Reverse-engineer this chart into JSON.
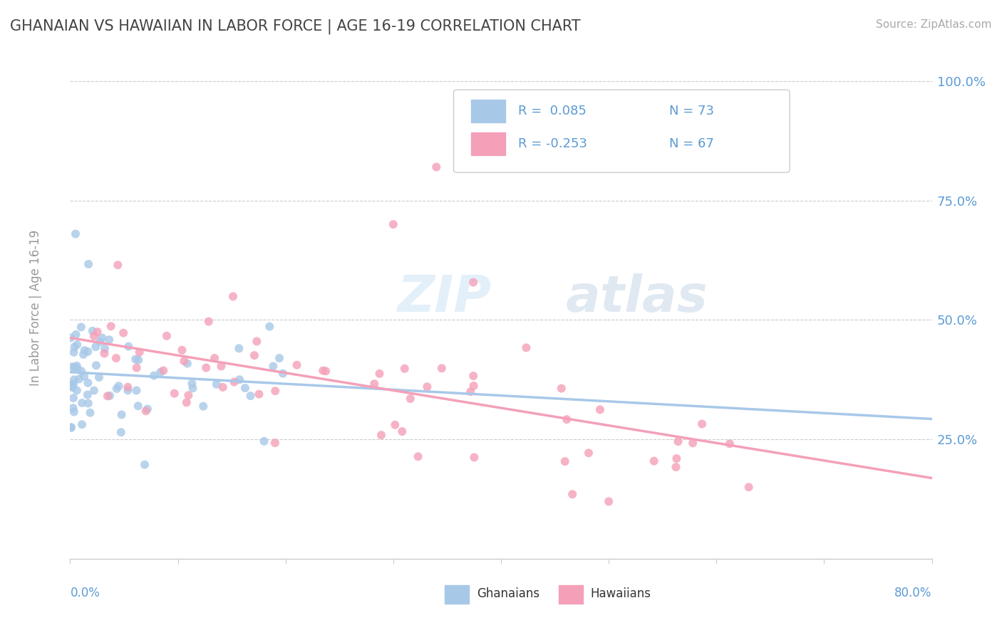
{
  "title": "GHANAIAN VS HAWAIIAN IN LABOR FORCE | AGE 16-19 CORRELATION CHART",
  "source_text": "Source: ZipAtlas.com",
  "ylabel": "In Labor Force | Age 16-19",
  "xmin": 0.0,
  "xmax": 0.8,
  "ymin": 0.0,
  "ymax": 1.05,
  "yticks": [
    0.25,
    0.5,
    0.75,
    1.0
  ],
  "ytick_labels": [
    "25.0%",
    "50.0%",
    "75.0%",
    "100.0%"
  ],
  "watermark_zip": "ZIP",
  "watermark_atlas": "atlas",
  "legend_r1": "R =  0.085",
  "legend_n1": "N = 73",
  "legend_r2": "R = -0.253",
  "legend_n2": "N = 67",
  "color_ghanaian": "#a8c8e8",
  "color_hawaiian": "#f4a0b8",
  "color_title": "#444444",
  "color_axis_label": "#999999",
  "color_tick_label": "#5b9bd5",
  "background_color": "#ffffff"
}
